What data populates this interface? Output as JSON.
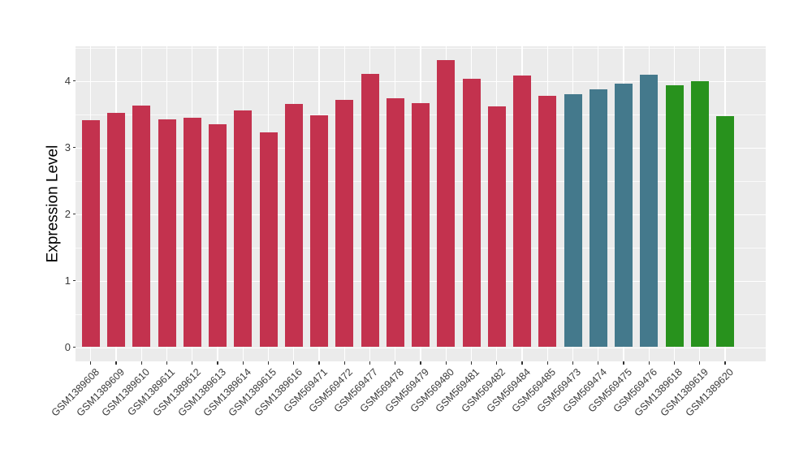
{
  "chart_data": {
    "type": "bar",
    "title": "",
    "ylabel": "Expression Level",
    "xlabel": "",
    "ylim": [
      0,
      4.52
    ],
    "yticks": [
      0,
      1,
      2,
      3,
      4
    ],
    "grid": "on",
    "legend": "none",
    "panel_background": "#EBEBEB",
    "gridline_color": "#FFFFFF",
    "axis_text_color": "#3A3A3A",
    "categories": [
      "GSM1389608",
      "GSM1389609",
      "GSM1389610",
      "GSM1389611",
      "GSM1389612",
      "GSM1389613",
      "GSM1389614",
      "GSM1389615",
      "GSM1389616",
      "GSM569471",
      "GSM569472",
      "GSM569477",
      "GSM569478",
      "GSM569479",
      "GSM569480",
      "GSM569481",
      "GSM569482",
      "GSM569484",
      "GSM569485",
      "GSM569473",
      "GSM569474",
      "GSM569475",
      "GSM569476",
      "GSM1389618",
      "GSM1389619",
      "GSM1389620"
    ],
    "series": [
      {
        "name": "Expression Level",
        "values": [
          3.41,
          3.52,
          3.63,
          3.42,
          3.44,
          3.35,
          3.56,
          3.23,
          3.65,
          3.48,
          3.71,
          4.1,
          3.74,
          3.67,
          4.31,
          4.03,
          3.62,
          4.08,
          3.78,
          3.8,
          3.87,
          3.96,
          4.09,
          3.93,
          3.99,
          3.47
        ]
      }
    ],
    "bar_groups": [
      {
        "color": "#C3324E",
        "start_index": 0,
        "end_index": 18
      },
      {
        "color": "#44798C",
        "start_index": 19,
        "end_index": 22
      },
      {
        "color": "#28921D",
        "start_index": 23,
        "end_index": 25
      }
    ]
  }
}
